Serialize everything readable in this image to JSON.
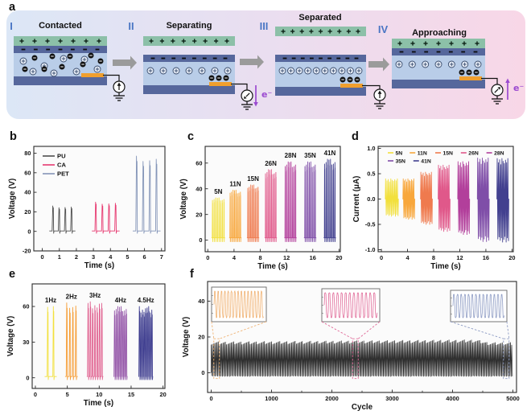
{
  "panels": {
    "a": {
      "letter": "a",
      "stages": [
        {
          "numeral": "I",
          "title": "Contacted"
        },
        {
          "numeral": "II",
          "title": "Separating",
          "electron_label": "e⁻",
          "electron_dir": "down"
        },
        {
          "numeral": "III",
          "title": "Separated"
        },
        {
          "numeral": "IV",
          "title": "Approaching",
          "electron_label": "e⁻",
          "electron_dir": "up"
        }
      ],
      "symbols": {
        "positive": "+",
        "negative": "-",
        "bound_charge": "⊕",
        "electron": "⊖"
      },
      "colors": {
        "background_left": "#dce7f6",
        "background_mid": "#eadef0",
        "background_right": "#f8d7e7",
        "top_layer": "#8cc0a8",
        "film_layer": "#56679c",
        "spacer_layer": "#b9cde8",
        "bottom_layer": "#56679c",
        "electrode": "#f09f2e",
        "numeral": "#4a76c4",
        "arrow": "#9b9b9b",
        "electron_purple": "#9b4ad0"
      }
    },
    "b": {
      "letter": "b"
    },
    "c": {
      "letter": "c"
    },
    "d": {
      "letter": "d"
    },
    "e": {
      "letter": "e"
    },
    "f": {
      "letter": "f"
    }
  },
  "chart_data": [
    {
      "panel": "b",
      "type": "line",
      "xlabel": "Time (s)",
      "ylabel": "Voltage (V)",
      "xlim": [
        -0.5,
        7.2
      ],
      "ylim": [
        -20,
        87
      ],
      "xticks": [
        0,
        1,
        2,
        3,
        4,
        5,
        6,
        7
      ],
      "yticks": [
        -20,
        0,
        20,
        40,
        60,
        80
      ],
      "legend": {
        "position": "top-left",
        "entries": [
          {
            "label": "PU",
            "color": "#4f4f4f"
          },
          {
            "label": "CA",
            "color": "#e73970"
          },
          {
            "label": "PET",
            "color": "#8495b8"
          }
        ]
      },
      "groups": [
        {
          "label": "PU",
          "color": "#4f4f4f",
          "t_start": 0.45,
          "t_end": 1.9,
          "peaks": 4,
          "amplitude_V": 26
        },
        {
          "label": "CA",
          "color": "#e73970",
          "t_start": 2.95,
          "t_end": 4.5,
          "peaks": 4,
          "amplitude_V": 30
        },
        {
          "label": "PET",
          "color": "#8495b8",
          "t_start": 5.35,
          "t_end": 6.9,
          "peaks": 4,
          "amplitude_V": 77
        }
      ]
    },
    {
      "panel": "c",
      "type": "line",
      "xlabel": "Time (s)",
      "ylabel": "Voltage (V)",
      "xlim": [
        -0.4,
        20.2
      ],
      "ylim": [
        -9,
        73
      ],
      "xticks": [
        0,
        4,
        8,
        12,
        16,
        20
      ],
      "yticks": [
        0,
        20,
        40,
        60
      ],
      "group_labels": true,
      "groups": [
        {
          "label": "5N",
          "color": "#f2e03c",
          "t_start": 0.6,
          "t_end": 2.6,
          "peaks": 8,
          "amplitude_V": 33
        },
        {
          "label": "11N",
          "color": "#f8a73c",
          "t_start": 3.3,
          "t_end": 5.1,
          "peaks": 8,
          "amplitude_V": 39
        },
        {
          "label": "15N",
          "color": "#ef7a4e",
          "t_start": 6.0,
          "t_end": 7.8,
          "peaks": 8,
          "amplitude_V": 43
        },
        {
          "label": "26N",
          "color": "#e0588a",
          "t_start": 8.7,
          "t_end": 10.5,
          "peaks": 8,
          "amplitude_V": 55
        },
        {
          "label": "28N",
          "color": "#b23f9b",
          "t_start": 11.7,
          "t_end": 13.5,
          "peaks": 8,
          "amplitude_V": 61
        },
        {
          "label": "35N",
          "color": "#7f4ea8",
          "t_start": 14.7,
          "t_end": 16.5,
          "peaks": 8,
          "amplitude_V": 61
        },
        {
          "label": "41N",
          "color": "#42408f",
          "t_start": 17.7,
          "t_end": 19.5,
          "peaks": 8,
          "amplitude_V": 63
        }
      ]
    },
    {
      "panel": "d",
      "type": "line",
      "xlabel": "Time (s)",
      "ylabel": "Current (μA)",
      "bipolar": true,
      "xlim": [
        -0.5,
        20.2
      ],
      "ylim": [
        -1.04,
        1.04
      ],
      "xticks": [
        0,
        4,
        8,
        12,
        16,
        20
      ],
      "yticks": [
        -1.0,
        -0.5,
        0.0,
        0.5,
        1.0
      ],
      "ytick_decimals": 1,
      "legend": {
        "position": "top",
        "rows": [
          [
            "5N",
            "11N",
            "15N",
            "26N",
            "28N"
          ],
          [
            "35N",
            "41N"
          ]
        ]
      },
      "groups": [
        {
          "label": "5N",
          "color": "#f2e03c",
          "t_start": 0.6,
          "t_end": 2.6,
          "peaks": 10,
          "amp_pos_uA": 0.4,
          "amp_neg_uA": 0.34
        },
        {
          "label": "11N",
          "color": "#f8a73c",
          "t_start": 3.3,
          "t_end": 5.1,
          "peaks": 10,
          "amp_pos_uA": 0.4,
          "amp_neg_uA": 0.4
        },
        {
          "label": "15N",
          "color": "#ef7a4e",
          "t_start": 6.0,
          "t_end": 7.8,
          "peaks": 10,
          "amp_pos_uA": 0.53,
          "amp_neg_uA": 0.5
        },
        {
          "label": "26N",
          "color": "#e0588a",
          "t_start": 8.7,
          "t_end": 10.5,
          "peaks": 10,
          "amp_pos_uA": 0.67,
          "amp_neg_uA": 0.64
        },
        {
          "label": "28N",
          "color": "#b23f9b",
          "t_start": 11.7,
          "t_end": 13.5,
          "peaks": 10,
          "amp_pos_uA": 0.74,
          "amp_neg_uA": 0.7
        },
        {
          "label": "35N",
          "color": "#7f4ea8",
          "t_start": 14.7,
          "t_end": 16.5,
          "peaks": 10,
          "amp_pos_uA": 0.81,
          "amp_neg_uA": 0.84
        },
        {
          "label": "41N",
          "color": "#42408f",
          "t_start": 17.7,
          "t_end": 19.5,
          "peaks": 10,
          "amp_pos_uA": 0.8,
          "amp_neg_uA": 0.85
        }
      ]
    },
    {
      "panel": "e",
      "type": "line",
      "xlabel": "Time (s)",
      "ylabel": "Voltage (V)",
      "xlim": [
        -0.5,
        20.3
      ],
      "ylim": [
        -9,
        79
      ],
      "xticks": [
        0,
        5,
        10,
        15,
        20
      ],
      "yticks": [
        0,
        30,
        60
      ],
      "group_labels": true,
      "groups": [
        {
          "label": "1Hz",
          "color": "#f2e03c",
          "t_start": 1.5,
          "t_end": 3.3,
          "peaks": 2,
          "amplitude_V": 60
        },
        {
          "label": "2Hz",
          "color": "#f69d35",
          "t_start": 4.7,
          "t_end": 6.6,
          "peaks": 4,
          "amplitude_V": 63
        },
        {
          "label": "3Hz",
          "color": "#df5c8c",
          "t_start": 8.1,
          "t_end": 10.6,
          "peaks": 7,
          "amplitude_V": 64
        },
        {
          "label": "4Hz",
          "color": "#9455a8",
          "t_start": 12.3,
          "t_end": 14.4,
          "peaks": 8,
          "amplitude_V": 60
        },
        {
          "label": "4.5Hz",
          "color": "#3c3b8e",
          "t_start": 16.2,
          "t_end": 18.4,
          "peaks": 9,
          "amplitude_V": 60
        }
      ]
    },
    {
      "panel": "f",
      "type": "line",
      "xlabel": "Cycle",
      "ylabel": "Voltage (V)",
      "xlim": [
        -60,
        5060
      ],
      "ylim": [
        -11,
        51
      ],
      "xticks": [
        0,
        1000,
        2000,
        3000,
        4000,
        5000
      ],
      "yticks": [
        0,
        20,
        40
      ],
      "band": {
        "x_start": 0,
        "x_end": 5000,
        "v_top": 17.5,
        "v_bottom": -2.2,
        "color": "#2f2f2f"
      },
      "insets": [
        {
          "color": "#f0b273",
          "cycles": 15,
          "marker_cycle": 90
        },
        {
          "color": "#e06a98",
          "cycles": 13,
          "marker_cycle": 2390
        },
        {
          "color": "#8e9cc4",
          "cycles": 14,
          "marker_cycle": 4890
        }
      ]
    }
  ]
}
